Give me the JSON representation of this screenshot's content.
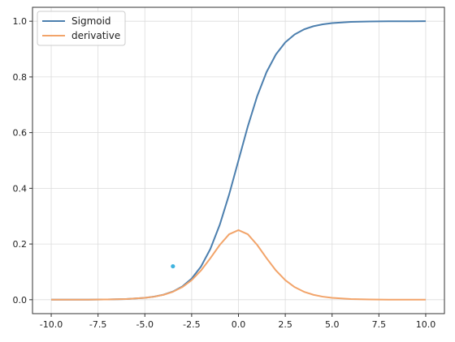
{
  "chart_data": {
    "type": "line",
    "title": "",
    "xlabel": "",
    "ylabel": "",
    "xlim": [
      -10.0,
      10.0
    ],
    "ylim": [
      0.0,
      1.0
    ],
    "grid": true,
    "legend_position": "upper-left",
    "x_ticks": [
      "-10.0",
      "-7.5",
      "-5.0",
      "-2.5",
      "0.0",
      "2.5",
      "5.0",
      "7.5",
      "10.0"
    ],
    "y_ticks": [
      "0.0",
      "0.2",
      "0.4",
      "0.6",
      "0.8",
      "1.0"
    ],
    "x": [
      -10,
      -9,
      -8,
      -7,
      -6,
      -5,
      -4.5,
      -4,
      -3.5,
      -3,
      -2.5,
      -2,
      -1.5,
      -1,
      -0.5,
      0,
      0.5,
      1,
      1.5,
      2,
      2.5,
      3,
      3.5,
      4,
      4.5,
      5,
      6,
      7,
      8,
      9,
      10
    ],
    "series": [
      {
        "name": "Sigmoid",
        "color": "#4c7fae",
        "values": [
          4.54e-05,
          0.000123,
          0.000335,
          0.000911,
          0.00247,
          0.00669,
          0.011,
          0.018,
          0.0293,
          0.0474,
          0.0759,
          0.1192,
          0.1824,
          0.2689,
          0.3775,
          0.5,
          0.6225,
          0.7311,
          0.8176,
          0.8808,
          0.9241,
          0.9526,
          0.9707,
          0.982,
          0.989,
          0.9933,
          0.9975,
          0.9991,
          0.9997,
          0.9999,
          1.0
        ]
      },
      {
        "name": "derivative",
        "color": "#f2a46a",
        "values": [
          4.54e-05,
          0.000123,
          0.000335,
          0.00091,
          0.00247,
          0.00665,
          0.0109,
          0.0177,
          0.0285,
          0.0452,
          0.0701,
          0.105,
          0.1491,
          0.1966,
          0.235,
          0.25,
          0.235,
          0.1966,
          0.1491,
          0.105,
          0.0701,
          0.0452,
          0.0285,
          0.0177,
          0.0109,
          0.00665,
          0.00247,
          0.00091,
          0.000335,
          0.000123,
          4.54e-05
        ]
      }
    ],
    "extra_points": [
      {
        "x": -3.5,
        "y": 0.12,
        "color": "#3fb3df"
      }
    ]
  }
}
